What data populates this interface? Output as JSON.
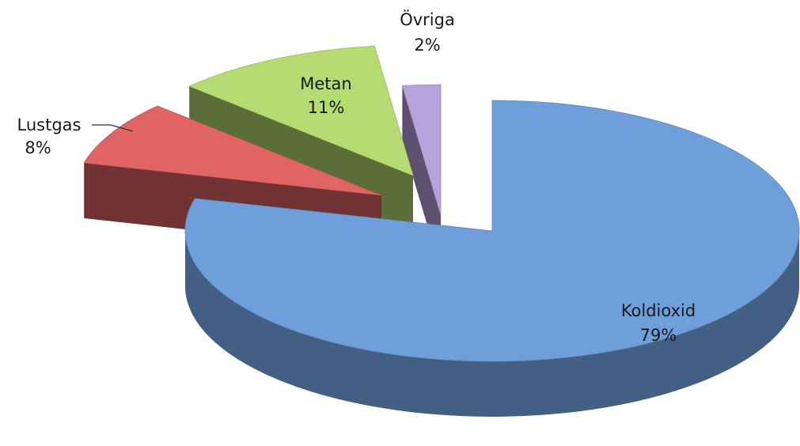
{
  "chart_data": {
    "type": "pie3d",
    "categories": [
      "Koldioxid",
      "Lustgas",
      "Metan",
      "Övriga"
    ],
    "values": [
      79,
      8,
      11,
      2
    ],
    "value_labels": [
      "79%",
      "8%",
      "11%",
      "2%"
    ],
    "colors": [
      "#6f9fdb",
      "#e06464",
      "#b6db72",
      "#b8a2dc"
    ]
  }
}
